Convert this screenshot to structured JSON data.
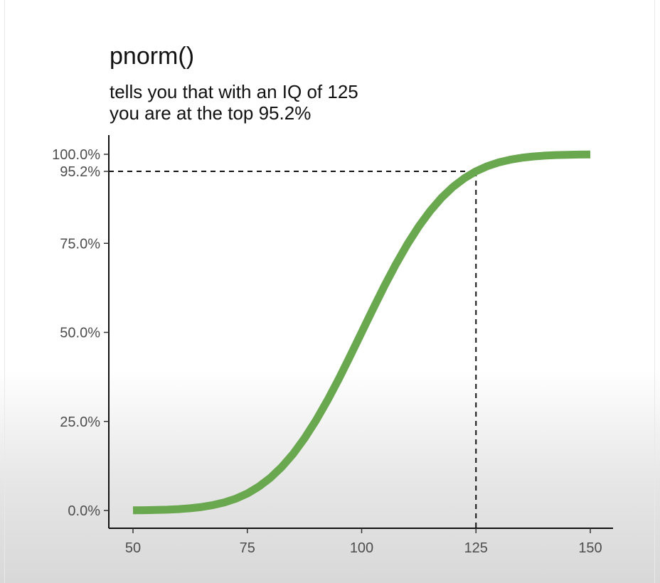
{
  "chart_data": {
    "type": "line",
    "title": "pnorm()",
    "subtitle_lines": [
      "tells you that with an IQ of 125",
      "you are at the top 95.2%"
    ],
    "xlabel": "",
    "ylabel": "",
    "xlim": [
      45,
      155
    ],
    "ylim": [
      0,
      1
    ],
    "x_ticks": [
      50,
      75,
      100,
      125,
      150
    ],
    "x_tick_labels": [
      "50",
      "75",
      "100",
      "125",
      "150"
    ],
    "y_ticks": [
      0,
      0.25,
      0.5,
      0.75,
      0.952,
      1.0
    ],
    "y_tick_labels": [
      "0.0%",
      "25.0%",
      "50.0%",
      "75.0%",
      "95.2%",
      "100.0%"
    ],
    "series": [
      {
        "color": "#6aa84f",
        "x": [
          50,
          52.5,
          55,
          57.5,
          60,
          62.5,
          65,
          67.5,
          70,
          72.5,
          75,
          77.5,
          80,
          82.5,
          85,
          87.5,
          90,
          92.5,
          95,
          97.5,
          100,
          102.5,
          105,
          107.5,
          110,
          112.5,
          115,
          117.5,
          120,
          122.5,
          125,
          127.5,
          130,
          132.5,
          135,
          137.5,
          140,
          142.5,
          145,
          147.5,
          150
        ],
        "values": [
          0.0004,
          0.0007,
          0.0013,
          0.0022,
          0.0038,
          0.0062,
          0.0098,
          0.0151,
          0.0228,
          0.0334,
          0.0478,
          0.0668,
          0.0912,
          0.1217,
          0.1587,
          0.2023,
          0.2525,
          0.3085,
          0.3694,
          0.4338,
          0.5,
          0.5662,
          0.6306,
          0.6915,
          0.7475,
          0.7977,
          0.8413,
          0.8783,
          0.9088,
          0.9332,
          0.9522,
          0.9666,
          0.9772,
          0.9849,
          0.9902,
          0.9938,
          0.9962,
          0.9978,
          0.9987,
          0.9993,
          0.9996
        ]
      }
    ],
    "reference": {
      "x": 125,
      "y": 0.952,
      "style": "dashed"
    },
    "grid": false,
    "legend": "none"
  }
}
